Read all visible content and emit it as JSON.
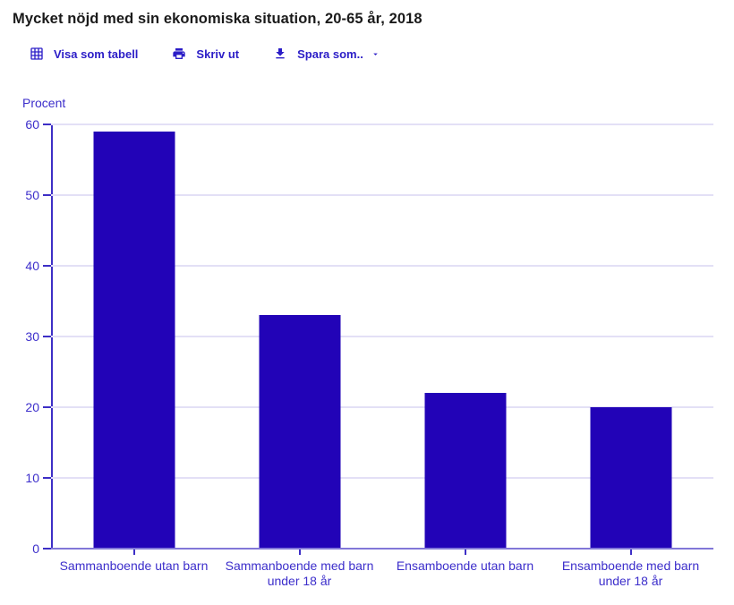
{
  "header": {
    "title": "Mycket nöjd med sin ekonomiska situation, 20-65 år, 2018"
  },
  "toolbar": {
    "view_table_label": "Visa som tabell",
    "print_label": "Skriv ut",
    "save_as_label": "Spara som..",
    "icons": [
      "table-grid-icon",
      "printer-icon",
      "download-icon",
      "caret-down-icon"
    ]
  },
  "chart_data": {
    "type": "bar",
    "title": "Mycket nöjd med sin ekonomiska situation, 20-65 år, 2018",
    "ylabel": "Procent",
    "xlabel": "",
    "categories": [
      "Sammanboende utan barn",
      "Sammanboende med barn under 18 år",
      "Ensamboende utan barn",
      "Ensamboende med barn under 18 år"
    ],
    "values": [
      59,
      33,
      22,
      20
    ],
    "ylim": [
      0,
      60
    ],
    "ytick_step": 10,
    "grid": true,
    "legend": false,
    "bar_color": "#2203b7"
  },
  "colors": {
    "accent": "#2b1dc7",
    "bar": "#2203b7",
    "axis": "#3d2fc6",
    "axis_text": "#3c2ecb",
    "grid": "#e3e0f6",
    "baseline": "#8277d8",
    "title": "#1a1a1a"
  }
}
